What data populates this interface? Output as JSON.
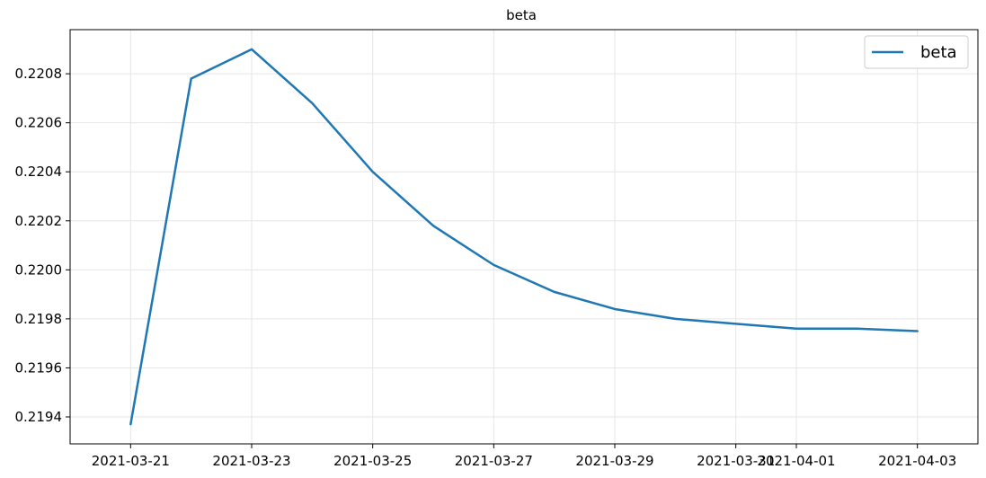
{
  "chart_data": {
    "type": "line",
    "title": "beta",
    "xlabel": "",
    "ylabel": "",
    "x": [
      "2021-03-21",
      "2021-03-22",
      "2021-03-23",
      "2021-03-24",
      "2021-03-25",
      "2021-03-26",
      "2021-03-27",
      "2021-03-28",
      "2021-03-29",
      "2021-03-30",
      "2021-03-31",
      "2021-04-01",
      "2021-04-02",
      "2021-04-03"
    ],
    "series": [
      {
        "name": "beta",
        "color": "#1f77b4",
        "values": [
          0.21937,
          0.22078,
          0.2209,
          0.22068,
          0.2204,
          0.22018,
          0.22002,
          0.21991,
          0.21984,
          0.2198,
          0.21978,
          0.21976,
          0.21976,
          0.21975
        ]
      }
    ],
    "x_ticks": [
      "2021-03-21",
      "2021-03-23",
      "2021-03-25",
      "2021-03-27",
      "2021-03-29",
      "2021-03-31",
      "2021-04-01",
      "2021-04-03"
    ],
    "y_ticks": [
      "0.2194",
      "0.2196",
      "0.2198",
      "0.2200",
      "0.2202",
      "0.2204",
      "0.2206",
      "0.2208"
    ],
    "xlim": [
      "2021-03-20",
      "2021-04-04"
    ],
    "ylim": [
      0.21929,
      0.22098
    ],
    "grid": true,
    "legend_position": "top-right"
  }
}
